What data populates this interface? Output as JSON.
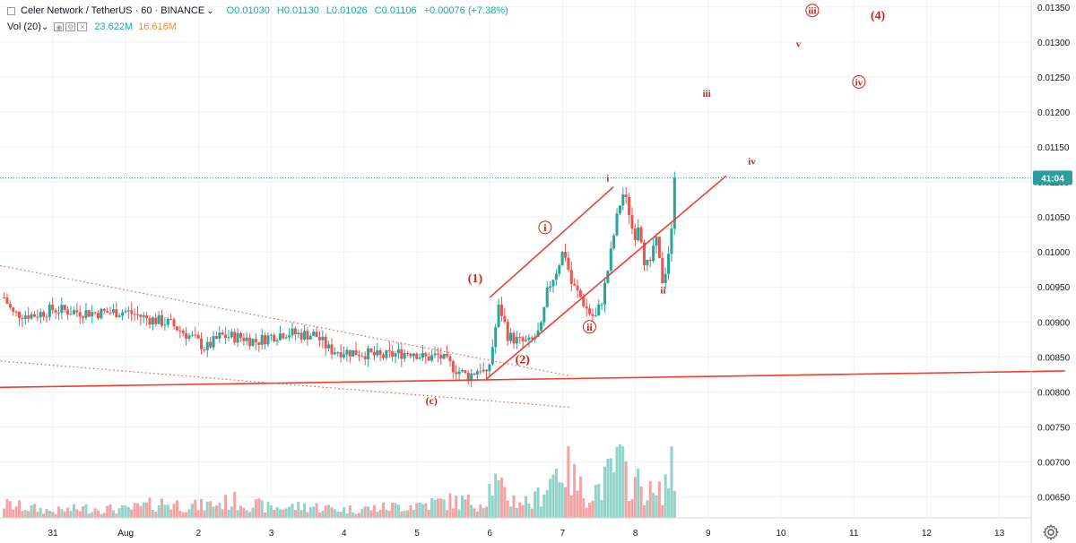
{
  "header": {
    "symbol_title": "Celer Network / TetherUS · 60 · BINANCE",
    "open": "O0.01030",
    "high": "H0.01130",
    "low": "L0.01026",
    "close": "C0.01106",
    "change": "+0.00076 (+7.38%)",
    "volume_label": "Vol (20)",
    "volume_value": "23.622M",
    "volume_ma": "16.616M"
  },
  "price_tag": "41:04",
  "colors": {
    "up": "#26a69a",
    "down": "#ef5350",
    "vol_up": "#8fd3c9",
    "vol_down": "#f4a3a3",
    "line": "#ef3d2f",
    "dotted": "#e05a4f",
    "label": "#c3261b",
    "price_line": "#2a9d9f",
    "grid": "#eef0f3"
  },
  "chart_data": {
    "type": "candlestick",
    "y_axis": {
      "ylim": [
        0.0062,
        0.0136
      ],
      "ticks": [
        "0.00650",
        "0.00700",
        "0.00750",
        "0.00800",
        "0.00850",
        "0.00900",
        "0.00950",
        "0.01000",
        "0.01050",
        "0.01100",
        "0.01150",
        "0.01200",
        "0.01250",
        "0.01300",
        "0.01350"
      ]
    },
    "x_axis": {
      "ticks": [
        {
          "label": "31",
          "t": 1.0
        },
        {
          "label": "Aug",
          "t": 2.0
        },
        {
          "label": "2",
          "t": 3.0
        },
        {
          "label": "3",
          "t": 4.0
        },
        {
          "label": "4",
          "t": 5.0
        },
        {
          "label": "5",
          "t": 6.0
        },
        {
          "label": "6",
          "t": 7.0
        },
        {
          "label": "7",
          "t": 8.0
        },
        {
          "label": "8",
          "t": 9.0
        },
        {
          "label": "9",
          "t": 10.0
        },
        {
          "label": "10",
          "t": 11.0
        },
        {
          "label": "11",
          "t": 12.0
        },
        {
          "label": "12",
          "t": 13.0
        },
        {
          "label": "13",
          "t": 14.0
        }
      ]
    },
    "last_price": 0.01106,
    "price_path": [
      [
        0.33,
        0.00935
      ],
      [
        0.45,
        0.00912
      ],
      [
        0.75,
        0.0091
      ],
      [
        1.0,
        0.00918
      ],
      [
        1.3,
        0.00915
      ],
      [
        1.6,
        0.00913
      ],
      [
        2.0,
        0.00915
      ],
      [
        2.3,
        0.00905
      ],
      [
        2.6,
        0.00898
      ],
      [
        2.95,
        0.00875
      ],
      [
        3.1,
        0.00862
      ],
      [
        3.3,
        0.0088
      ],
      [
        3.6,
        0.00878
      ],
      [
        3.8,
        0.00872
      ],
      [
        4.0,
        0.0088
      ],
      [
        4.2,
        0.00885
      ],
      [
        4.4,
        0.00882
      ],
      [
        4.6,
        0.00882
      ],
      [
        4.8,
        0.0086
      ],
      [
        5.0,
        0.00858
      ],
      [
        5.3,
        0.00855
      ],
      [
        5.5,
        0.0085
      ],
      [
        5.75,
        0.00855
      ],
      [
        5.95,
        0.00858
      ],
      [
        6.1,
        0.00848
      ],
      [
        6.3,
        0.00852
      ],
      [
        6.5,
        0.00835
      ],
      [
        6.7,
        0.00822
      ],
      [
        6.88,
        0.00835
      ],
      [
        6.96,
        0.0082
      ],
      [
        7.03,
        0.0086
      ],
      [
        7.13,
        0.00925
      ],
      [
        7.25,
        0.0088
      ],
      [
        7.4,
        0.00872
      ],
      [
        7.55,
        0.0087
      ],
      [
        7.7,
        0.00888
      ],
      [
        7.8,
        0.00948
      ],
      [
        7.92,
        0.00975
      ],
      [
        8.02,
        0.01005
      ],
      [
        8.12,
        0.00955
      ],
      [
        8.25,
        0.00935
      ],
      [
        8.35,
        0.00915
      ],
      [
        8.45,
        0.00905
      ],
      [
        8.55,
        0.00935
      ],
      [
        8.65,
        0.0099
      ],
      [
        8.73,
        0.0104
      ],
      [
        8.82,
        0.01085
      ],
      [
        8.9,
        0.01065
      ],
      [
        8.98,
        0.0102
      ],
      [
        9.05,
        0.01045
      ],
      [
        9.12,
        0.0099
      ],
      [
        9.2,
        0.00975
      ],
      [
        9.27,
        0.01025
      ],
      [
        9.33,
        0.00985
      ],
      [
        9.38,
        0.00955
      ],
      [
        9.44,
        0.0099
      ],
      [
        9.5,
        0.0103
      ],
      [
        9.55,
        0.01106
      ]
    ],
    "volume_path": [
      [
        0.33,
        0.8
      ],
      [
        1.0,
        0.4
      ],
      [
        1.5,
        0.6
      ],
      [
        2.0,
        0.5
      ],
      [
        2.5,
        0.9
      ],
      [
        3.0,
        0.7
      ],
      [
        3.5,
        1.0
      ],
      [
        4.0,
        0.6
      ],
      [
        4.5,
        0.7
      ],
      [
        5.0,
        0.5
      ],
      [
        5.5,
        0.6
      ],
      [
        6.0,
        0.8
      ],
      [
        6.5,
        1.0
      ],
      [
        6.9,
        0.9
      ],
      [
        7.05,
        2.2
      ],
      [
        7.15,
        1.6
      ],
      [
        7.3,
        1.1
      ],
      [
        7.6,
        0.9
      ],
      [
        7.85,
        2.5
      ],
      [
        8.0,
        3.2
      ],
      [
        8.1,
        2.6
      ],
      [
        8.3,
        1.4
      ],
      [
        8.5,
        1.8
      ],
      [
        8.6,
        2.2
      ],
      [
        8.75,
        3.3
      ],
      [
        8.9,
        2.4
      ],
      [
        9.1,
        1.8
      ],
      [
        9.3,
        1.2
      ],
      [
        9.5,
        2.8
      ],
      [
        9.55,
        2.3
      ]
    ],
    "trendlines": [
      {
        "style": "solid",
        "from": [
          -0.05,
          0.00806
        ],
        "to": [
          14.9,
          0.0083
        ]
      },
      {
        "style": "solid",
        "from": [
          7.0,
          0.00935
        ],
        "to": [
          8.7,
          0.01093
        ]
      },
      {
        "style": "solid",
        "from": [
          6.95,
          0.00818
        ],
        "to": [
          10.25,
          0.01109
        ]
      },
      {
        "style": "dotted",
        "from": [
          -0.05,
          0.00987
        ],
        "to": [
          8.1,
          0.00823
        ]
      },
      {
        "style": "dotted",
        "from": [
          -0.05,
          0.00847
        ],
        "to": [
          8.1,
          0.00778
        ]
      }
    ],
    "wave_labels": [
      {
        "text": "(1)",
        "t": 6.8,
        "v": 0.00963,
        "circled": false,
        "size": 14
      },
      {
        "text": "(2)",
        "t": 7.45,
        "v": 0.00847,
        "circled": false,
        "size": 14
      },
      {
        "text": "(c)",
        "t": 6.2,
        "v": 0.00788,
        "circled": false,
        "size": 12
      },
      {
        "text": "i",
        "t": 7.76,
        "v": 0.01035,
        "circled": true,
        "size": 12
      },
      {
        "text": "ii",
        "t": 8.37,
        "v": 0.00893,
        "circled": true,
        "size": 12
      },
      {
        "text": "i",
        "t": 8.62,
        "v": 0.01106,
        "circled": false,
        "size": 11
      },
      {
        "text": "ii",
        "t": 9.38,
        "v": 0.00946,
        "circled": false,
        "size": 11
      },
      {
        "text": "iii",
        "t": 9.98,
        "v": 0.01227,
        "circled": false,
        "size": 11
      },
      {
        "text": "iv",
        "t": 10.6,
        "v": 0.0113,
        "circled": false,
        "size": 11
      },
      {
        "text": "v",
        "t": 11.24,
        "v": 0.01298,
        "circled": false,
        "size": 11
      },
      {
        "text": "iii",
        "t": 11.43,
        "v": 0.01345,
        "circled": true,
        "size": 11
      },
      {
        "text": "iv",
        "t": 12.07,
        "v": 0.01243,
        "circled": true,
        "size": 11
      },
      {
        "text": "(4)",
        "t": 12.33,
        "v": 0.01339,
        "circled": false,
        "size": 14
      }
    ]
  }
}
